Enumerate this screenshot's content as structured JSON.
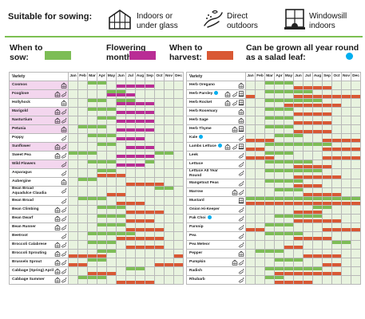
{
  "header": {
    "suitable_title": "Suitable for sowing:",
    "sowing_types": [
      {
        "icon": "greenhouse-icon",
        "label": "Indoors or under glass"
      },
      {
        "icon": "hand-sowing-icon",
        "label": "Direct outdoors"
      },
      {
        "icon": "windowsill-icon",
        "label": "Windowsill indoors"
      }
    ]
  },
  "legend": {
    "sow_label": "When to sow:",
    "flower_label": "Flowering months:",
    "harvest_label": "When to harvest:",
    "salad_label": "Can be grown all year round as a salad leaf:",
    "colors": {
      "sow": "#7dbd56",
      "flower": "#b92d95",
      "harvest": "#d95834",
      "salad": "#00aeef"
    }
  },
  "months": [
    "Jan",
    "Feb",
    "Mar",
    "Apr",
    "May",
    "Jun",
    "Jul",
    "Aug",
    "Sep",
    "Oct",
    "Nov",
    "Dec"
  ],
  "left_table": {
    "header": "Variety",
    "rows": [
      {
        "name": "Cosmos",
        "pink": true,
        "icons": [
          "greenhouse-icon"
        ],
        "sow": [
          3,
          4
        ],
        "flower": [
          6,
          7,
          8,
          9
        ]
      },
      {
        "name": "Foxglove",
        "pink": true,
        "icons": [
          "greenhouse-icon",
          "hand-sowing-icon"
        ],
        "sow": [
          5,
          6
        ],
        "flower": [
          5,
          6,
          7
        ]
      },
      {
        "name": "Hollyhock",
        "pink": false,
        "icons": [
          "greenhouse-icon"
        ],
        "sow": [
          3,
          4,
          6,
          7
        ],
        "flower": [
          6,
          7,
          8,
          9
        ]
      },
      {
        "name": "Marigold",
        "pink": true,
        "icons": [
          "greenhouse-icon",
          "hand-sowing-icon"
        ],
        "sow": [
          3,
          4,
          5
        ],
        "flower": [
          6,
          7,
          8,
          9
        ]
      },
      {
        "name": "Nasturtium",
        "pink": true,
        "icons": [
          "greenhouse-icon",
          "hand-sowing-icon"
        ],
        "sow": [
          4,
          5
        ],
        "flower": [
          6,
          7,
          8,
          9
        ]
      },
      {
        "name": "Petunia",
        "pink": true,
        "icons": [
          "greenhouse-icon"
        ],
        "sow": [
          2,
          3,
          4
        ],
        "flower": [
          6,
          7,
          8,
          9
        ]
      },
      {
        "name": "Poppy",
        "pink": false,
        "icons": [
          "hand-sowing-icon"
        ],
        "sow": [
          3,
          4,
          5
        ],
        "flower": [
          6,
          7,
          8
        ]
      },
      {
        "name": "Sunflower",
        "pink": true,
        "icons": [
          "greenhouse-icon",
          "hand-sowing-icon"
        ],
        "sow": [
          4,
          5
        ],
        "flower": [
          7,
          8,
          9
        ]
      },
      {
        "name": "Sweet Pea",
        "pink": false,
        "icons": [
          "greenhouse-icon",
          "hand-sowing-icon"
        ],
        "sow": [
          1,
          2,
          3,
          10,
          11
        ],
        "flower": [
          6,
          7,
          8,
          9
        ]
      },
      {
        "name": "Wild Flowers",
        "pink": true,
        "icons": [
          "hand-sowing-icon"
        ],
        "sow": [
          3,
          4,
          5,
          9
        ],
        "flower": [
          6,
          7,
          8
        ]
      },
      {
        "name": "Asparagus",
        "pink": false,
        "icons": [
          "hand-sowing-icon"
        ],
        "sow": [
          4,
          5
        ],
        "harvest": [
          4,
          5,
          6
        ]
      },
      {
        "name": "Aubergine",
        "pink": false,
        "icons": [
          "greenhouse-icon"
        ],
        "sow": [
          2,
          3
        ],
        "harvest": [
          7,
          8,
          9,
          10
        ]
      },
      {
        "name": "Bean Broad Aquadulce Claudia",
        "pink": false,
        "tall": true,
        "icons": [
          "hand-sowing-icon"
        ],
        "sow": [
          10,
          11
        ],
        "harvest": [
          5,
          6
        ]
      },
      {
        "name": "Bean Broad",
        "pink": false,
        "icons": [
          "hand-sowing-icon"
        ],
        "sow": [
          2,
          3,
          4
        ],
        "harvest": [
          6,
          7,
          8
        ]
      },
      {
        "name": "Bean Climbing",
        "pink": false,
        "icons": [
          "greenhouse-icon",
          "hand-sowing-icon"
        ],
        "sow": [
          4,
          5,
          6
        ],
        "harvest": [
          7,
          8,
          9,
          10
        ]
      },
      {
        "name": "Bean Dwarf",
        "pink": false,
        "icons": [
          "greenhouse-icon",
          "hand-sowing-icon"
        ],
        "sow": [
          4,
          5,
          6
        ],
        "harvest": [
          7,
          8,
          9
        ]
      },
      {
        "name": "Bean Runner",
        "pink": false,
        "icons": [
          "greenhouse-icon",
          "hand-sowing-icon"
        ],
        "sow": [
          4,
          5,
          6
        ],
        "harvest": [
          7,
          8,
          9,
          10
        ]
      },
      {
        "name": "Beetroot",
        "pink": false,
        "icons": [
          "hand-sowing-icon"
        ],
        "sow": [
          3,
          4,
          5,
          6,
          7
        ],
        "harvest": [
          6,
          7,
          8,
          9,
          10
        ]
      },
      {
        "name": "Broccoli Calabrese",
        "pink": false,
        "icons": [
          "greenhouse-icon",
          "hand-sowing-icon"
        ],
        "sow": [
          3,
          4,
          5
        ],
        "harvest": [
          7,
          8,
          9,
          10
        ]
      },
      {
        "name": "Broccoli Sprouting",
        "pink": false,
        "icons": [
          "greenhouse-icon",
          "hand-sowing-icon"
        ],
        "sow": [
          4,
          5
        ],
        "harvest": [
          1,
          2,
          3,
          4,
          12
        ]
      },
      {
        "name": "Brussels Sprout",
        "pink": false,
        "icons": [
          "greenhouse-icon",
          "hand-sowing-icon"
        ],
        "sow": [
          3,
          4
        ],
        "harvest": [
          1,
          2,
          10,
          11,
          12
        ]
      },
      {
        "name": "Cabbage (Spring) April",
        "pink": false,
        "icons": [
          "greenhouse-icon",
          "hand-sowing-icon"
        ],
        "sow": [
          7,
          8
        ],
        "harvest": [
          3,
          4,
          5
        ]
      },
      {
        "name": "Cabbage Summer",
        "pink": false,
        "icons": [
          "greenhouse-icon",
          "hand-sowing-icon"
        ],
        "sow": [
          2,
          3,
          4
        ],
        "harvest": [
          6,
          7,
          8,
          9
        ]
      }
    ]
  },
  "right_table": {
    "header": "Variety",
    "rows": [
      {
        "name": "Herb Oregano",
        "icons": [
          "greenhouse-icon"
        ],
        "sow": [
          3,
          4,
          5
        ],
        "harvest": [
          6,
          7,
          8,
          9
        ]
      },
      {
        "name": "Herb Parsley",
        "salad": true,
        "icons": [
          "greenhouse-icon",
          "hand-sowing-icon",
          "windowsill-icon"
        ],
        "sow": [
          3,
          4,
          5,
          6,
          7
        ],
        "harvest": [
          1,
          6,
          7,
          8,
          9,
          10,
          11,
          12
        ]
      },
      {
        "name": "Herb Rocket",
        "icons": [
          "greenhouse-icon",
          "hand-sowing-icon",
          "windowsill-icon"
        ],
        "sow": [
          3,
          4,
          5,
          6,
          7,
          8
        ],
        "harvest": [
          5,
          6,
          7,
          8,
          9,
          10
        ]
      },
      {
        "name": "Herb Rosemary",
        "icons": [
          "greenhouse-icon"
        ],
        "sow": [
          3,
          4,
          5
        ],
        "harvest": [
          6,
          7,
          8,
          9
        ]
      },
      {
        "name": "Herb Sage",
        "icons": [
          "greenhouse-icon"
        ],
        "sow": [
          3,
          4,
          5
        ],
        "harvest": [
          6,
          7,
          8,
          9
        ]
      },
      {
        "name": "Herb Thyme",
        "icons": [
          "greenhouse-icon",
          "windowsill-icon"
        ],
        "sow": [
          3,
          4,
          5
        ],
        "harvest": [
          6,
          7,
          8,
          9
        ]
      },
      {
        "name": "Kale",
        "salad": true,
        "icons": [
          "hand-sowing-icon"
        ],
        "sow": [
          4,
          5,
          6
        ],
        "harvest": [
          1,
          2,
          3,
          9,
          10,
          11,
          12
        ]
      },
      {
        "name": "Lambs Lettuce",
        "salad": true,
        "icons": [
          "greenhouse-icon",
          "hand-sowing-icon",
          "windowsill-icon"
        ],
        "sow": [
          3,
          4,
          5,
          6,
          7,
          8,
          9
        ],
        "harvest": [
          1,
          2,
          9,
          10,
          11,
          12
        ]
      },
      {
        "name": "Leek",
        "icons": [
          "hand-sowing-icon"
        ],
        "sow": [
          3,
          4,
          5
        ],
        "harvest": [
          1,
          2,
          3,
          9,
          10,
          11,
          12
        ]
      },
      {
        "name": "Lettuce",
        "icons": [
          "hand-sowing-icon"
        ],
        "sow": [
          3,
          4,
          5,
          6,
          7
        ],
        "harvest": [
          6,
          7,
          8,
          9
        ]
      },
      {
        "name": "Lettuce All Year Round",
        "tall": true,
        "icons": [
          "hand-sowing-icon"
        ],
        "sow": [
          3,
          4,
          5,
          6,
          7,
          8
        ],
        "harvest": [
          6,
          7,
          8,
          9,
          10
        ]
      },
      {
        "name": "Mangetout Peas",
        "icons": [
          "hand-sowing-icon"
        ],
        "sow": [
          3,
          4,
          5,
          6
        ],
        "harvest": [
          6,
          7,
          8
        ]
      },
      {
        "name": "Marrow",
        "icons": [
          "greenhouse-icon",
          "hand-sowing-icon"
        ],
        "sow": [
          4,
          5,
          6
        ],
        "harvest": [
          7,
          8,
          9,
          10
        ]
      },
      {
        "name": "Mustard",
        "icons": [
          "windowsill-icon"
        ],
        "sow": [
          1,
          2,
          3,
          4,
          5,
          6,
          7,
          8,
          9,
          10,
          11,
          12
        ],
        "harvest": [
          1,
          2,
          3,
          4,
          5,
          6,
          7,
          8,
          9,
          10,
          11,
          12
        ]
      },
      {
        "name": "Onion Hi-Keeper",
        "icons": [
          "hand-sowing-icon"
        ],
        "sow": [
          8,
          9
        ],
        "harvest": [
          6,
          7,
          8
        ]
      },
      {
        "name": "Pak Choi",
        "salad": true,
        "icons": [
          "hand-sowing-icon"
        ],
        "sow": [
          4,
          5,
          6,
          7,
          8
        ],
        "harvest": [
          6,
          7,
          8,
          9,
          10
        ]
      },
      {
        "name": "Parsnip",
        "icons": [
          "hand-sowing-icon"
        ],
        "sow": [
          3,
          4,
          5
        ],
        "harvest": [
          1,
          2,
          9,
          10,
          11,
          12
        ]
      },
      {
        "name": "Pea",
        "icons": [
          "hand-sowing-icon"
        ],
        "sow": [
          3,
          4,
          5,
          6
        ],
        "harvest": [
          6,
          7,
          8,
          9
        ]
      },
      {
        "name": "Pea Meteor",
        "icons": [
          "hand-sowing-icon"
        ],
        "sow": [
          10,
          11
        ],
        "harvest": [
          5,
          6
        ]
      },
      {
        "name": "Pepper",
        "icons": [
          "greenhouse-icon"
        ],
        "sow": [
          2,
          3,
          4
        ],
        "harvest": [
          7,
          8,
          9,
          10
        ]
      },
      {
        "name": "Pumpkin",
        "icons": [
          "greenhouse-icon",
          "hand-sowing-icon"
        ],
        "sow": [
          4,
          5,
          6
        ],
        "harvest": [
          9,
          10
        ]
      },
      {
        "name": "Radish",
        "icons": [
          "hand-sowing-icon"
        ],
        "sow": [
          3,
          4,
          5,
          6,
          7,
          8
        ],
        "harvest": [
          4,
          5,
          6,
          7,
          8,
          9,
          10
        ]
      },
      {
        "name": "Rhubarb",
        "icons": [
          "hand-sowing-icon"
        ],
        "sow": [
          3,
          4
        ],
        "harvest": [
          4,
          5,
          6,
          7
        ]
      }
    ]
  }
}
